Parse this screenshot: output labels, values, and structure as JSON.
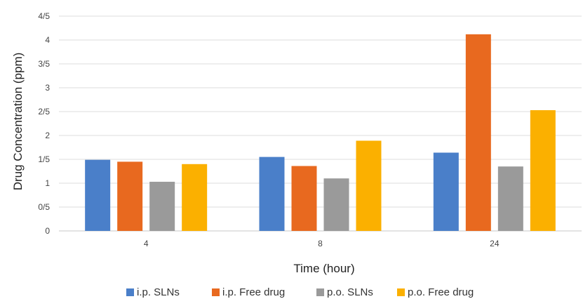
{
  "chart_data": {
    "type": "bar",
    "title": "",
    "xlabel": "Time (hour)",
    "ylabel": "Drug Concentration (ppm)",
    "categories": [
      "4",
      "8",
      "24"
    ],
    "ylim": [
      0,
      4.5
    ],
    "yticks": [
      {
        "value": 0,
        "label": "0"
      },
      {
        "value": 0.5,
        "label": "0/5"
      },
      {
        "value": 1,
        "label": "1"
      },
      {
        "value": 1.5,
        "label": "1/5"
      },
      {
        "value": 2,
        "label": "2"
      },
      {
        "value": 2.5,
        "label": "2/5"
      },
      {
        "value": 3,
        "label": "3"
      },
      {
        "value": 3.5,
        "label": "3/5"
      },
      {
        "value": 4,
        "label": "4"
      },
      {
        "value": 4.5,
        "label": "4/5"
      }
    ],
    "grid": true,
    "legend_position": "bottom",
    "series": [
      {
        "name": "i.p. SLNs",
        "color": "#4a7fc9",
        "values": [
          1.49,
          1.55,
          1.64
        ]
      },
      {
        "name": "i.p. Free drug",
        "color": "#e8691f",
        "values": [
          1.45,
          1.36,
          4.12
        ]
      },
      {
        "name": "p.o. SLNs",
        "color": "#9a9a9a",
        "values": [
          1.03,
          1.1,
          1.35
        ]
      },
      {
        "name": "p.o. Free drug",
        "color": "#fbb000",
        "values": [
          1.4,
          1.89,
          2.53
        ]
      }
    ]
  }
}
